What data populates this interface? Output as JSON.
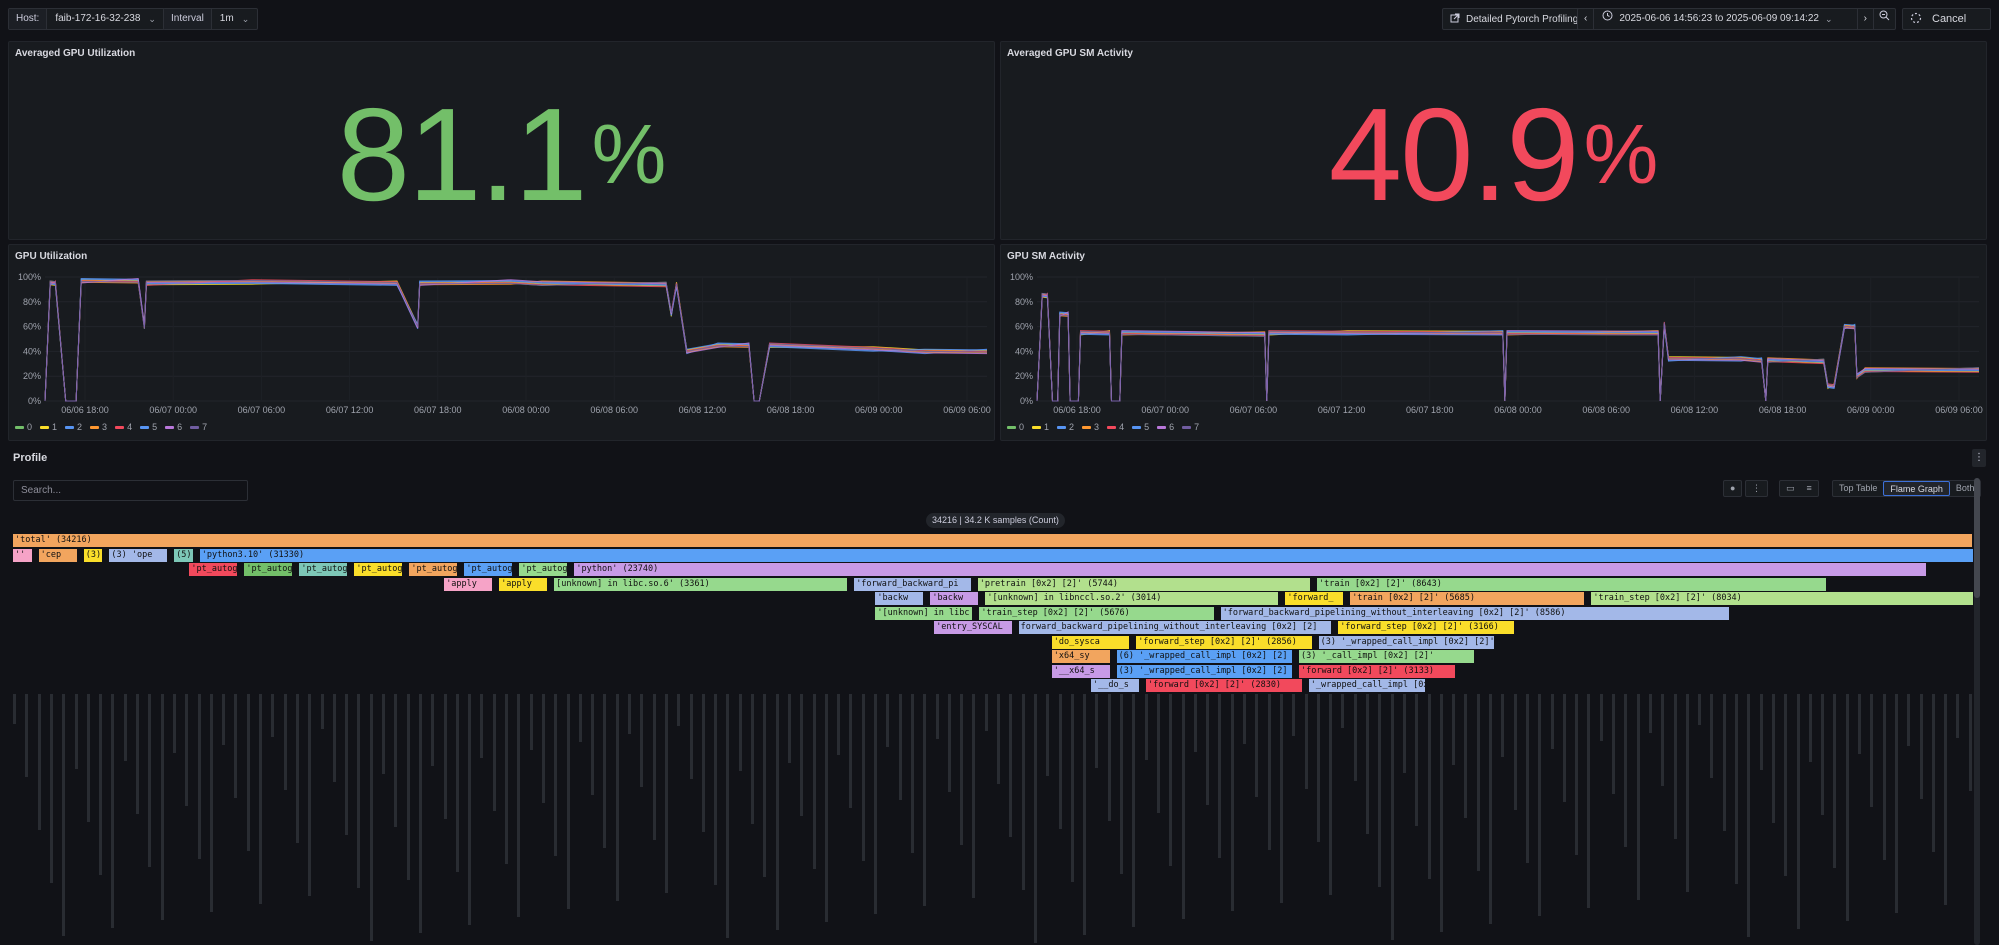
{
  "toolbar": {
    "host_label": "Host:",
    "host_value": "faib-172-16-32-238",
    "interval_label": "Interval",
    "interval_value": "1m",
    "profiling_button": "Detailed Pytorch Profiling",
    "time_range": "2025-06-06 14:56:23 to 2025-06-09 09:14:22",
    "cancel_label": "Cancel"
  },
  "panels": {
    "avg_util": {
      "title": "Averaged GPU Utilization",
      "value": "81.1",
      "unit": "%",
      "color": "#73bf69"
    },
    "avg_sm": {
      "title": "Averaged GPU SM Activity",
      "value": "40.9",
      "unit": "%",
      "color": "#f2495c"
    },
    "util_chart_title": "GPU Utilization",
    "sm_chart_title": "GPU SM Activity"
  },
  "chart_data": [
    {
      "type": "line",
      "title": "GPU Utilization",
      "y_ticks": [
        "100%",
        "80%",
        "60%",
        "40%",
        "20%",
        "0%"
      ],
      "x_ticks": [
        "06/06 18:00",
        "06/07 00:00",
        "06/07 06:00",
        "06/07 12:00",
        "06/07 18:00",
        "06/08 00:00",
        "06/08 06:00",
        "06/08 12:00",
        "06/08 18:00",
        "06/09 00:00",
        "06/09 06:00"
      ],
      "ylim": [
        0,
        100
      ],
      "legend_position": "bottom-left",
      "series": [
        {
          "name": "0",
          "color": "#73bf69"
        },
        {
          "name": "1",
          "color": "#fade2a"
        },
        {
          "name": "2",
          "color": "#5794f2"
        },
        {
          "name": "3",
          "color": "#ff9830"
        },
        {
          "name": "4",
          "color": "#f2495c"
        },
        {
          "name": "5",
          "color": "#5794f2"
        },
        {
          "name": "6",
          "color": "#b877d9"
        },
        {
          "name": "7",
          "color": "#705da0"
        }
      ],
      "profile_points": [
        [
          0,
          0
        ],
        [
          0.5,
          95
        ],
        [
          1,
          95
        ],
        [
          2,
          0
        ],
        [
          3,
          0
        ],
        [
          3.5,
          97
        ],
        [
          9,
          97
        ],
        [
          9.6,
          60
        ],
        [
          9.8,
          95
        ],
        [
          20,
          96
        ],
        [
          34,
          95
        ],
        [
          36,
          60
        ],
        [
          36.2,
          95
        ],
        [
          45,
          96
        ],
        [
          48,
          95
        ],
        [
          60,
          94
        ],
        [
          60.5,
          70
        ],
        [
          61,
          94
        ],
        [
          62,
          40
        ],
        [
          65,
          45
        ],
        [
          68,
          45
        ],
        [
          68.5,
          0
        ],
        [
          69,
          0
        ],
        [
          70,
          45
        ],
        [
          80,
          42
        ],
        [
          85,
          40
        ],
        [
          91,
          40
        ]
      ]
    },
    {
      "type": "line",
      "title": "GPU SM Activity",
      "y_ticks": [
        "100%",
        "80%",
        "60%",
        "40%",
        "20%",
        "0%"
      ],
      "x_ticks": [
        "06/06 18:00",
        "06/07 00:00",
        "06/07 06:00",
        "06/07 12:00",
        "06/07 18:00",
        "06/08 00:00",
        "06/08 06:00",
        "06/08 12:00",
        "06/08 18:00",
        "06/09 00:00",
        "06/09 06:00"
      ],
      "ylim": [
        0,
        100
      ],
      "legend_position": "bottom-left",
      "series": [
        {
          "name": "0",
          "color": "#73bf69"
        },
        {
          "name": "1",
          "color": "#fade2a"
        },
        {
          "name": "2",
          "color": "#5794f2"
        },
        {
          "name": "3",
          "color": "#ff9830"
        },
        {
          "name": "4",
          "color": "#f2495c"
        },
        {
          "name": "5",
          "color": "#5794f2"
        },
        {
          "name": "6",
          "color": "#b877d9"
        },
        {
          "name": "7",
          "color": "#705da0"
        }
      ],
      "profile_points": [
        [
          0,
          0
        ],
        [
          0.5,
          85
        ],
        [
          1,
          85
        ],
        [
          1.5,
          0
        ],
        [
          2,
          0
        ],
        [
          2.2,
          70
        ],
        [
          3,
          70
        ],
        [
          3.2,
          0
        ],
        [
          4,
          0
        ],
        [
          4.2,
          55
        ],
        [
          7,
          55
        ],
        [
          7.2,
          0
        ],
        [
          8,
          0
        ],
        [
          8.2,
          55
        ],
        [
          22,
          54
        ],
        [
          22.2,
          0
        ],
        [
          22.4,
          55
        ],
        [
          30,
          55
        ],
        [
          45,
          55
        ],
        [
          45.2,
          0
        ],
        [
          45.4,
          55
        ],
        [
          60,
          55
        ],
        [
          60.2,
          0
        ],
        [
          60.6,
          62
        ],
        [
          61,
          34
        ],
        [
          68,
          34
        ],
        [
          70,
          33
        ],
        [
          70.4,
          0
        ],
        [
          70.6,
          33
        ],
        [
          76,
          32
        ],
        [
          76.4,
          12
        ],
        [
          77,
          12
        ],
        [
          78,
          60
        ],
        [
          79,
          60
        ],
        [
          79.2,
          20
        ],
        [
          80,
          25
        ],
        [
          91,
          25
        ]
      ]
    }
  ],
  "profile": {
    "title": "Profile",
    "search_placeholder": "Search...",
    "samples_label": "34216 | 34.2 K samples (Count)",
    "view_options": [
      "Top Table",
      "Flame Graph",
      "Both"
    ],
    "active_view": "Flame Graph",
    "flame_rows": [
      [
        {
          "t": "'total' (34216)",
          "c": "#f2a55e",
          "w": 100
        }
      ],
      [
        {
          "t": "'' (",
          "c": "#f6a3c7",
          "w": 1
        },
        {
          "t": "'cep",
          "c": "#f2a55e",
          "w": 2
        },
        {
          "t": "(3)",
          "c": "#fade2a",
          "w": 1
        },
        {
          "t": "(3) 'ope",
          "c": "#a3b8e8",
          "w": 3
        },
        {
          "t": "(5)",
          "c": "#7dc7b7",
          "w": 1
        },
        {
          "t": "'python3.10' (31330)",
          "c": "#5aa0f5",
          "w": 92
        }
      ],
      [
        {
          "t": "'pt_autog",
          "c": "#f2495c",
          "w": 2.5
        },
        {
          "t": "'pt_autog",
          "c": "#73bf69",
          "w": 2.5
        },
        {
          "t": "'pt_autog",
          "c": "#7dc7b7",
          "w": 2.5
        },
        {
          "t": "'pt_autog",
          "c": "#fade2a",
          "w": 2.5
        },
        {
          "t": "'pt_autog",
          "c": "#f2a55e",
          "w": 2.5
        },
        {
          "t": "'pt_autog",
          "c": "#5aa0f5",
          "w": 2.5
        },
        {
          "t": "'pt_autog",
          "c": "#96d98d",
          "w": 2.5
        },
        {
          "t": "'python' (23740)",
          "c": "#c79ae6",
          "w": 69
        }
      ],
      [
        {
          "t": "'apply",
          "c": "#f6a3c7",
          "w": 2.5
        },
        {
          "t": "'apply",
          "c": "#fade2a",
          "w": 2.5
        },
        {
          "t": "[unknown] in libc.so.6' (3361)",
          "c": "#96d98d",
          "w": 15
        },
        {
          "t": "'forward_backward_pi",
          "c": "#a3b8e8",
          "w": 6
        },
        {
          "t": "'pretrain [0x2] [2]' (5744)",
          "c": "#b2e08d",
          "w": 17
        },
        {
          "t": "'train [0x2] [2]' (8643)",
          "c": "#96d98d",
          "w": 26
        }
      ],
      [
        {
          "t": "'backw",
          "c": "#a3b8e8",
          "w": 2.5
        },
        {
          "t": "'backw",
          "c": "#c79ae6",
          "w": 2.5
        },
        {
          "t": "'[unknown] in libnccl.so.2' (3014)",
          "c": "#b2e08d",
          "w": 15
        },
        {
          "t": "'forward_",
          "c": "#fade2a",
          "w": 3
        },
        {
          "t": "'train [0x2] [2]' (5685)",
          "c": "#f2a55e",
          "w": 12
        },
        {
          "t": "'train_step [0x2] [2]' (8034)",
          "c": "#b2e08d",
          "w": 26
        }
      ],
      [
        {
          "t": "'[unknown] in libc",
          "c": "#96d98d",
          "w": 5
        },
        {
          "t": "'train_step [0x2] [2]' (5676)",
          "c": "#96d98d",
          "w": 12
        },
        {
          "t": "'forward_backward_pipelining_without_interleaving [0x2] [2]' (8586)",
          "c": "#a3b8e8",
          "w": 26
        }
      ],
      [
        {
          "t": "'entry_SYSCAL",
          "c": "#c79ae6",
          "w": 4
        },
        {
          "t": "forward_backward_pipelining_without_interleaving [0x2] [2]",
          "c": "#a3b8e8",
          "w": 16
        },
        {
          "t": "'forward_step [0x2] [2]' (3166)",
          "c": "#fade2a",
          "w": 9
        }
      ],
      [
        {
          "t": "'do_sysca",
          "c": "#fade2a",
          "w": 4
        },
        {
          "t": "'forward_step [0x2] [2]' (2856)",
          "c": "#fade2a",
          "w": 9
        },
        {
          "t": "(3) '_wrapped_call_impl [0x2] [2]'",
          "c": "#a3b8e8",
          "w": 9
        }
      ],
      [
        {
          "t": "'x64_sy",
          "c": "#f2a55e",
          "w": 3
        },
        {
          "t": "(6) '_wrapped_call_impl [0x2] [2]",
          "c": "#5aa0f5",
          "w": 9
        },
        {
          "t": "(3) '_call_impl [0x2] [2]'",
          "c": "#96d98d",
          "w": 9
        }
      ],
      [
        {
          "t": "'__x64_s",
          "c": "#c79ae6",
          "w": 3
        },
        {
          "t": "(3) '_wrapped_call_impl [0x2] [2]",
          "c": "#5aa0f5",
          "w": 9
        },
        {
          "t": "'forward [0x2] [2]' (3133)",
          "c": "#f2495c",
          "w": 8
        }
      ],
      [
        {
          "t": "'__do_s",
          "c": "#a3b8e8",
          "w": 2.5
        },
        {
          "t": "'forward [0x2] [2]' (2830)",
          "c": "#f2495c",
          "w": 8
        },
        {
          "t": "'_wrapped_call_impl [0x2]",
          "c": "#a3b8e8",
          "w": 6
        }
      ]
    ]
  }
}
